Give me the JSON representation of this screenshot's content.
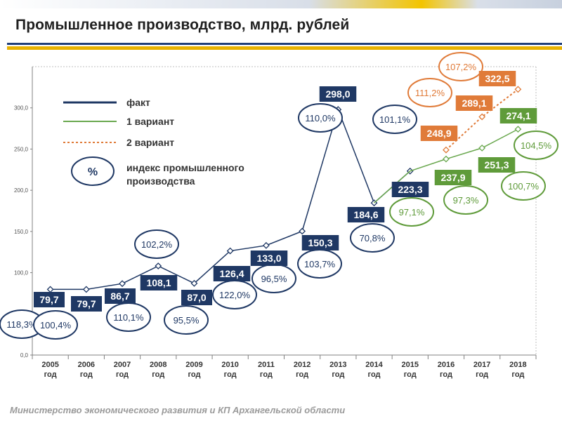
{
  "header": {
    "title": "Промышленное производство, млрд. рублей"
  },
  "footer": {
    "text": "Министерство экономического развития и КП Архангельской области"
  },
  "legend": {
    "fact": "факт",
    "variant1": "1 вариант",
    "variant2": "2 вариант",
    "percent_symbol": "%",
    "index_line1": "индекс промышленного",
    "index_line2": "производства"
  },
  "colors": {
    "fact": "#1f3864",
    "variant1": "#6aa84f",
    "variant2": "#e07b39",
    "fact_box": "#1f3864",
    "variant1_box": "#5f9b3a",
    "variant2_box": "#e07b39"
  },
  "chart_data": {
    "type": "line",
    "categories": [
      "2005 год",
      "2006 год",
      "2007 год",
      "2008 год",
      "2009 год",
      "2010 год",
      "2011 год",
      "2012 год",
      "2013 год",
      "2014 год",
      "2015 год",
      "2016 год",
      "2017 год",
      "2018 год"
    ],
    "ylim": [
      0,
      350
    ],
    "yticks": [
      "0,0",
      "50,0",
      "100,0",
      "150,0",
      "200,0",
      "250,0",
      "300,0"
    ],
    "grid": false,
    "legend_position": "top-left",
    "series": [
      {
        "name": "факт",
        "values": [
          79.7,
          79.7,
          86.7,
          108.1,
          87.0,
          126.4,
          133.0,
          150.3,
          298.0,
          184.6,
          223.3,
          null,
          null,
          null
        ],
        "labels": [
          "79,7",
          "79,7",
          "86,7",
          "108,1",
          "87,0",
          "126,4",
          "133,0",
          "150,3",
          "298,0",
          "184,6",
          "223,3",
          "",
          "",
          ""
        ]
      },
      {
        "name": "1 вариант",
        "values": [
          null,
          null,
          null,
          null,
          null,
          null,
          null,
          null,
          null,
          184.6,
          223.3,
          237.9,
          251.3,
          274.1
        ],
        "labels": [
          "",
          "",
          "",
          "",
          "",
          "",
          "",
          "",
          "",
          "",
          "",
          "237,9",
          "251,3",
          "274,1"
        ]
      },
      {
        "name": "2 вариант",
        "values": [
          null,
          null,
          null,
          null,
          null,
          null,
          null,
          null,
          null,
          null,
          null,
          248.9,
          289.1,
          322.5
        ],
        "labels": [
          "",
          "",
          "",
          "",
          "",
          "",
          "",
          "",
          "",
          "",
          "",
          "248,9",
          "289,1",
          "322,5"
        ]
      }
    ],
    "index_fact": [
      "118,3%",
      "100,4%",
      "110,1%",
      "102,2%",
      "95,5%",
      "122,0%",
      "96,5%",
      "103,7%",
      "110,0%",
      "70,8%",
      "101,1%",
      "",
      "",
      ""
    ],
    "index_variant1": [
      "",
      "",
      "",
      "",
      "",
      "",
      "",
      "",
      "",
      "",
      "97,1%",
      "97,3%",
      "100,7%",
      "104,5%"
    ],
    "index_variant2": [
      "",
      "",
      "",
      "",
      "",
      "",
      "",
      "",
      "",
      "",
      "",
      "111,2%",
      "107,2%",
      ""
    ]
  }
}
